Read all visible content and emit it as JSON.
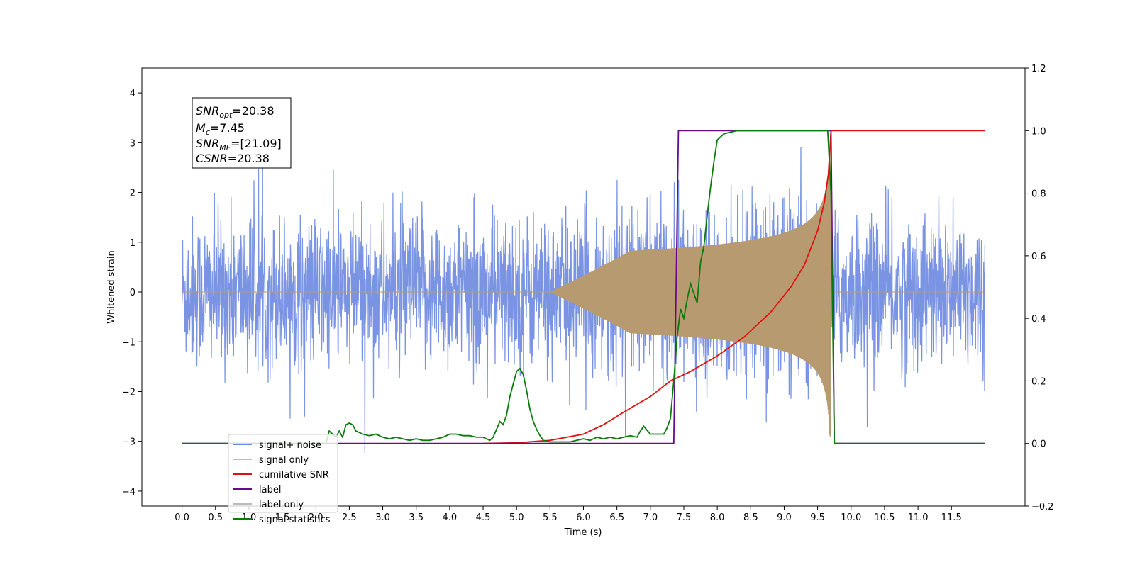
{
  "chart_data": {
    "type": "line",
    "xlabel": "Time (s)",
    "ylabel": "Whitened strain",
    "xlim": [
      -0.6,
      12.6
    ],
    "ylim": [
      -4.3,
      4.5
    ],
    "y2lim": [
      -0.2,
      1.2
    ],
    "x_ticks": [
      "0.0",
      "0.5",
      "1.0",
      "1.5",
      "2.0",
      "2.5",
      "3.0",
      "3.5",
      "4.0",
      "4.5",
      "5.0",
      "5.5",
      "6.0",
      "6.5",
      "7.0",
      "7.5",
      "8.0",
      "8.5",
      "9.0",
      "9.5",
      "10.0",
      "10.5",
      "11.0",
      "11.5"
    ],
    "y_ticks": [
      "4",
      "3",
      "2",
      "1",
      "0",
      "−1",
      "−2",
      "−3",
      "−4"
    ],
    "y2_ticks": [
      "1.2",
      "1.0",
      "0.8",
      "0.6",
      "0.4",
      "0.2",
      "0.0",
      "−0.2"
    ],
    "grid": false,
    "legend_placement": "lower-left",
    "annotation": {
      "snr_opt": {
        "sym": "SNR",
        "sub": "opt",
        "val": "=20.38"
      },
      "mc": {
        "sym": "M",
        "sub": "c",
        "val": "=7.45"
      },
      "snr_mf": {
        "sym": "SNR",
        "sub": "MF",
        "val": "=[21.09]"
      },
      "csnr": {
        "sym": "CSNR",
        "val": "=20.38"
      }
    },
    "series": [
      {
        "name": "signal+ noise",
        "axis": "left",
        "color": "#6b88e0",
        "description_values": {
          "x_start": 0.0,
          "x_end": 12.0,
          "noise_sigma": 0.75
        }
      },
      {
        "name": "signal only",
        "axis": "left",
        "color": "#ffb347",
        "chirp": {
          "x_start": 5.5,
          "x_merge": 9.7,
          "peak_amplitude": 2.9
        }
      },
      {
        "name": "cumilative SNR",
        "axis": "right",
        "color": "#e01010",
        "x": [
          4.5,
          5.0,
          5.5,
          6.0,
          6.3,
          6.6,
          7.0,
          7.3,
          7.6,
          8.0,
          8.4,
          8.8,
          9.1,
          9.3,
          9.5,
          9.6,
          9.66,
          9.7,
          12.0
        ],
        "y": [
          0.0,
          0.002,
          0.01,
          0.03,
          0.06,
          0.1,
          0.15,
          0.2,
          0.23,
          0.28,
          0.34,
          0.42,
          0.5,
          0.57,
          0.68,
          0.77,
          0.86,
          1.0,
          1.0
        ]
      },
      {
        "name": "label",
        "axis": "right",
        "color": "#6a0a8a",
        "x": [
          0.0,
          7.35,
          7.42,
          9.7,
          9.75,
          12.0
        ],
        "y": [
          0.0,
          0.0,
          1.0,
          1.0,
          0.0,
          0.0
        ]
      },
      {
        "name": "label only",
        "axis": "right",
        "color": "#b0b0b0",
        "legend_only": true
      },
      {
        "name": "signal statistics",
        "axis": "right",
        "color": "#0a7a0a",
        "x": [
          0.0,
          2.15,
          2.2,
          2.3,
          2.35,
          2.4,
          2.45,
          2.5,
          2.55,
          2.6,
          2.7,
          2.8,
          2.9,
          3.0,
          3.1,
          3.2,
          3.3,
          3.4,
          3.5,
          3.6,
          3.7,
          3.8,
          3.9,
          4.0,
          4.1,
          4.2,
          4.3,
          4.4,
          4.5,
          4.6,
          4.65,
          4.7,
          4.75,
          4.8,
          4.85,
          4.9,
          4.95,
          5.0,
          5.05,
          5.1,
          5.15,
          5.2,
          5.25,
          5.3,
          5.35,
          5.4,
          5.5,
          5.6,
          5.8,
          5.9,
          6.0,
          6.1,
          6.2,
          6.3,
          6.4,
          6.5,
          6.6,
          6.7,
          6.8,
          6.85,
          6.9,
          7.0,
          7.1,
          7.2,
          7.25,
          7.3,
          7.35,
          7.4,
          7.45,
          7.5,
          7.55,
          7.6,
          7.65,
          7.7,
          7.75,
          7.8,
          7.85,
          7.9,
          7.95,
          8.0,
          8.1,
          8.3,
          8.6,
          9.0,
          9.5,
          9.65,
          9.7,
          9.75,
          12.0
        ],
        "y": [
          0.0,
          0.0,
          0.04,
          0.02,
          0.04,
          0.02,
          0.06,
          0.065,
          0.06,
          0.04,
          0.03,
          0.025,
          0.03,
          0.02,
          0.015,
          0.02,
          0.015,
          0.01,
          0.015,
          0.01,
          0.01,
          0.015,
          0.02,
          0.03,
          0.03,
          0.025,
          0.025,
          0.02,
          0.02,
          0.01,
          0.02,
          0.045,
          0.07,
          0.06,
          0.09,
          0.15,
          0.19,
          0.23,
          0.24,
          0.22,
          0.17,
          0.11,
          0.07,
          0.045,
          0.025,
          0.01,
          0.005,
          0.005,
          0.005,
          0.01,
          0.015,
          0.01,
          0.02,
          0.015,
          0.02,
          0.015,
          0.02,
          0.025,
          0.02,
          0.04,
          0.055,
          0.03,
          0.03,
          0.03,
          0.05,
          0.08,
          0.2,
          0.34,
          0.43,
          0.4,
          0.46,
          0.51,
          0.48,
          0.45,
          0.58,
          0.63,
          0.73,
          0.82,
          0.9,
          0.97,
          0.99,
          1.0,
          1.0,
          1.0,
          1.0,
          1.0,
          0.8,
          0.0,
          0.0
        ]
      }
    ]
  }
}
